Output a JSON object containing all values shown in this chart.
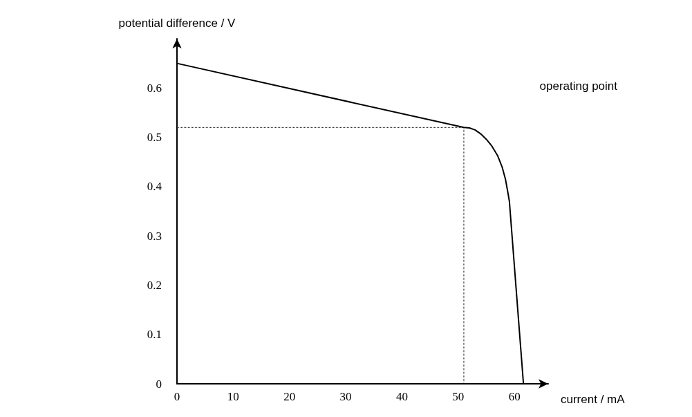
{
  "chart_data": {
    "type": "line",
    "xlabel": "current / mA",
    "ylabel": "potential difference / V",
    "x": [
      0,
      51,
      52,
      53,
      54,
      55,
      56,
      57,
      57.8,
      58.4,
      58.8,
      59.1,
      61.6
    ],
    "values": [
      0.65,
      0.52,
      0.519,
      0.515,
      0.507,
      0.496,
      0.482,
      0.463,
      0.44,
      0.415,
      0.39,
      0.37,
      0
    ],
    "color": "#000000",
    "marker": "none",
    "line_style": "solid",
    "grid": false,
    "xlim": [
      0,
      66
    ],
    "xticks": [
      0,
      10,
      20,
      30,
      40,
      50,
      60
    ],
    "ylim": [
      0,
      0.7
    ],
    "yticks": [
      0,
      0.1,
      0.2,
      0.3,
      0.4,
      0.5,
      0.6
    ],
    "ref_lines": [
      {
        "axis": "y",
        "value": 0.52,
        "line_style": "dotted"
      },
      {
        "axis": "x",
        "value": 51,
        "line_style": "dotted"
      }
    ],
    "annotations": [
      "operating point"
    ]
  }
}
